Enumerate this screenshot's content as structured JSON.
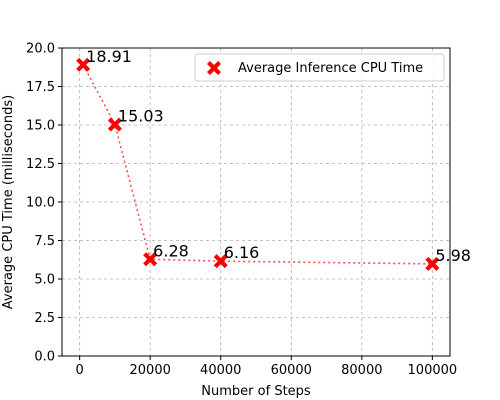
{
  "chart_data": {
    "type": "line",
    "title": "",
    "xlabel": "Number of Steps",
    "ylabel": "Average CPU Time (milliseconds)",
    "xlim": [
      -5000,
      105000
    ],
    "ylim": [
      0,
      20
    ],
    "xticks": [
      0,
      20000,
      40000,
      60000,
      80000,
      100000
    ],
    "yticks": [
      0.0,
      2.5,
      5.0,
      7.5,
      10.0,
      12.5,
      15.0,
      17.5,
      20.0
    ],
    "xtick_labels": [
      "0",
      "20000",
      "40000",
      "60000",
      "80000",
      "100000"
    ],
    "ytick_labels": [
      "0.0",
      "2.5",
      "5.0",
      "7.5",
      "10.0",
      "12.5",
      "15.0",
      "17.5",
      "20.0"
    ],
    "grid": true,
    "legend_position": "top-right",
    "series": [
      {
        "name": "Average Inference CPU Time",
        "color": "#ff0000",
        "line_style": "dotted",
        "marker": "X",
        "x": [
          1000,
          10000,
          20000,
          40000,
          100000
        ],
        "y": [
          18.91,
          15.03,
          6.28,
          6.16,
          5.98
        ],
        "labels": [
          "18.91",
          "15.03",
          "6.28",
          "6.16",
          "5.98"
        ]
      }
    ]
  }
}
